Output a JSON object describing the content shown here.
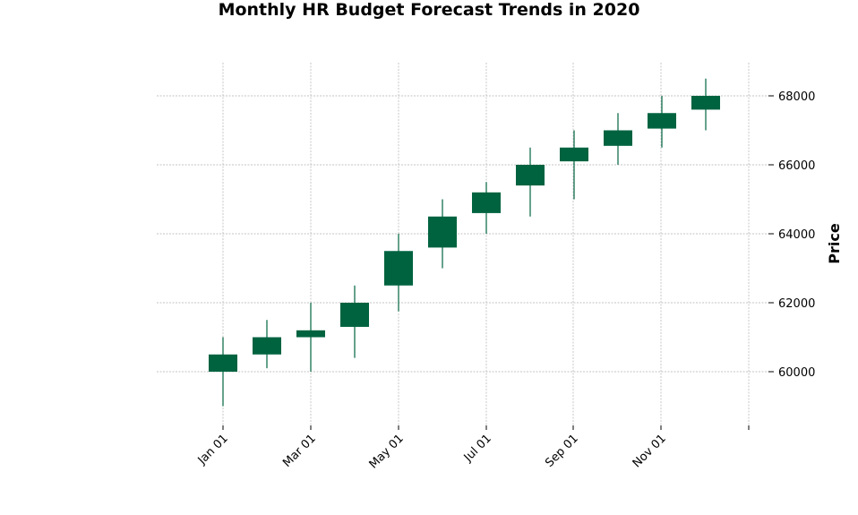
{
  "chart_data": {
    "type": "candlestick",
    "title": "Monthly HR Budget Forecast Trends in 2020",
    "xlabel": "",
    "ylabel": "Price",
    "ylim": [
      58500,
      69000
    ],
    "yticks": [
      60000,
      62000,
      64000,
      66000,
      68000
    ],
    "ytick_labels": [
      "60000",
      "62000",
      "64000",
      "66000",
      "68000"
    ],
    "xtick_labels": [
      "Jan 01",
      "Mar 01",
      "May 01",
      "Jul 01",
      "Sep 01",
      "Nov 01",
      ""
    ],
    "grid": true,
    "up_color": "#006340",
    "categories": [
      "2020-01-01",
      "2020-02-01",
      "2020-03-01",
      "2020-04-01",
      "2020-05-01",
      "2020-06-01",
      "2020-07-01",
      "2020-08-01",
      "2020-09-01",
      "2020-10-01",
      "2020-11-01",
      "2020-12-01"
    ],
    "open": [
      60000,
      60500,
      61000,
      61300,
      62500,
      63600,
      64600,
      65400,
      66100,
      66550,
      67050,
      67600
    ],
    "high": [
      61000,
      61500,
      62000,
      62500,
      64000,
      65000,
      65500,
      66500,
      67000,
      67500,
      68000,
      68500
    ],
    "low": [
      59000,
      60100,
      60000,
      60400,
      61750,
      63000,
      64000,
      64500,
      65000,
      66000,
      66500,
      67000
    ],
    "close": [
      60500,
      61000,
      61200,
      62000,
      63500,
      64500,
      65200,
      66000,
      66500,
      67000,
      67500,
      68000
    ]
  }
}
